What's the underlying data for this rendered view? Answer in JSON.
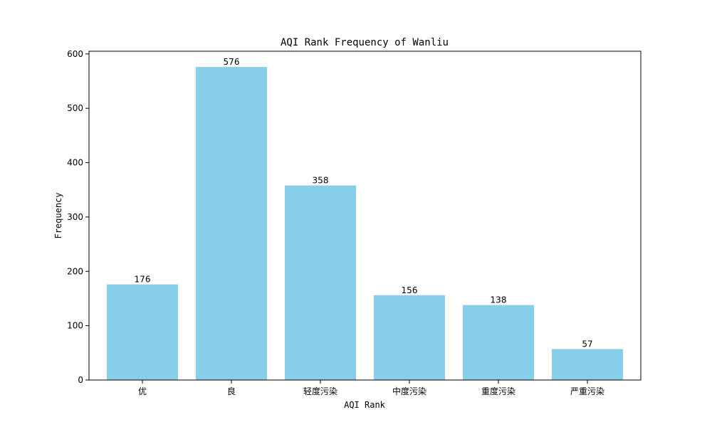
{
  "chart_data": {
    "type": "bar",
    "title": "AQI Rank Frequency of Wanliu",
    "xlabel": "AQI Rank",
    "ylabel": "Frequency",
    "categories": [
      "优",
      "良",
      "轻度污染",
      "中度污染",
      "重度污染",
      "严重污染"
    ],
    "values": [
      176,
      576,
      358,
      156,
      138,
      57
    ],
    "ylim": [
      0,
      605
    ],
    "yticks": [
      0,
      100,
      200,
      300,
      400,
      500,
      600
    ],
    "grid": false,
    "legend": "none",
    "colors": {
      "bar": "#87CEEB",
      "axis": "#000000",
      "text": "#000000"
    }
  }
}
